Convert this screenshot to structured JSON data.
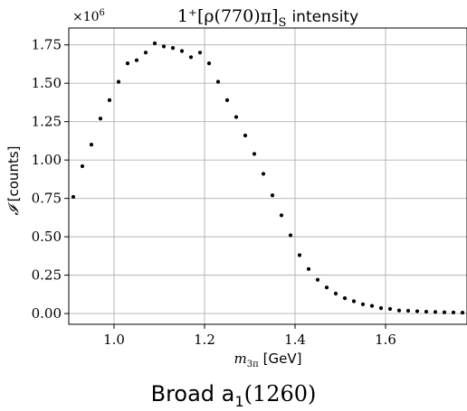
{
  "chart_data": {
    "type": "scatter",
    "title_math": "1⁺[ρ(770)π]",
    "title_sub": "S",
    "title_text": "intensity",
    "xlabel_math": "m",
    "xlabel_sub": "3π",
    "xlabel_unit": "[GeV]",
    "ylabel_math": "𝓘",
    "ylabel_unit": "[counts]",
    "y_multiplier": "×10",
    "y_multiplier_exp": "6",
    "xlim": [
      0.9,
      1.78
    ],
    "ylim": [
      -0.07,
      1.86
    ],
    "xticks": [
      1.0,
      1.2,
      1.4,
      1.6
    ],
    "xtick_labels": [
      "1.0",
      "1.2",
      "1.4",
      "1.6"
    ],
    "yticks": [
      0.0,
      0.25,
      0.5,
      0.75,
      1.0,
      1.25,
      1.5,
      1.75
    ],
    "ytick_labels": [
      "0.00",
      "0.25",
      "0.50",
      "0.75",
      "1.00",
      "1.25",
      "1.50",
      "1.75"
    ],
    "grid": true,
    "marker_color": "#000000",
    "grid_color": "#b0b0b0",
    "x": [
      0.91,
      0.93,
      0.95,
      0.97,
      0.99,
      1.01,
      1.03,
      1.05,
      1.07,
      1.09,
      1.11,
      1.13,
      1.15,
      1.17,
      1.19,
      1.21,
      1.23,
      1.25,
      1.27,
      1.29,
      1.31,
      1.33,
      1.35,
      1.37,
      1.39,
      1.41,
      1.43,
      1.45,
      1.47,
      1.49,
      1.51,
      1.53,
      1.55,
      1.57,
      1.59,
      1.61,
      1.63,
      1.65,
      1.67,
      1.69,
      1.71,
      1.73,
      1.75,
      1.77
    ],
    "y": [
      0.76,
      0.96,
      1.1,
      1.27,
      1.39,
      1.51,
      1.63,
      1.65,
      1.7,
      1.76,
      1.74,
      1.73,
      1.71,
      1.67,
      1.7,
      1.63,
      1.51,
      1.39,
      1.28,
      1.16,
      1.04,
      0.91,
      0.77,
      0.64,
      0.51,
      0.38,
      0.29,
      0.22,
      0.17,
      0.13,
      0.1,
      0.08,
      0.06,
      0.05,
      0.035,
      0.03,
      0.02,
      0.018,
      0.015,
      0.012,
      0.01,
      0.008,
      0.007,
      0.006
    ]
  },
  "caption": {
    "main": "Broad a",
    "sub": "1",
    "math": "(1260)"
  }
}
